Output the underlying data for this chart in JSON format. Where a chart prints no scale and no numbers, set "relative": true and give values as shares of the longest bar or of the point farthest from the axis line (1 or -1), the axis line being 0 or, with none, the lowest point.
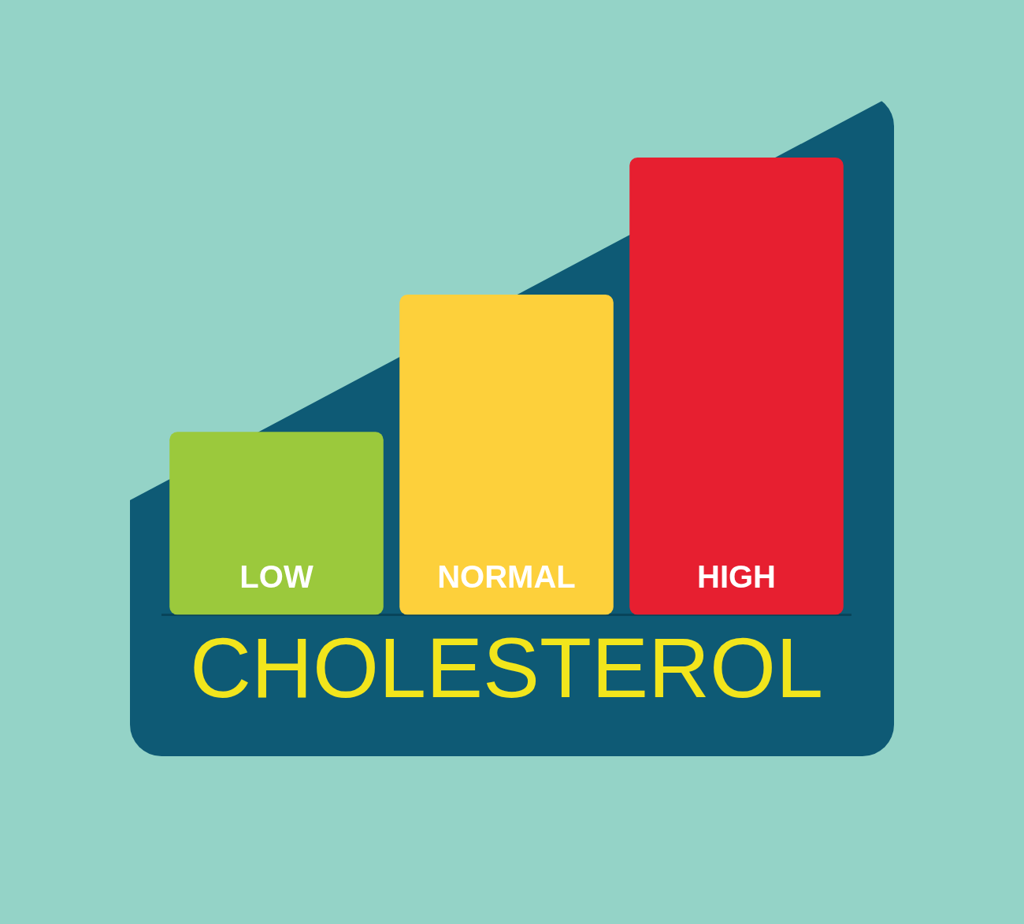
{
  "chart_data": {
    "type": "bar",
    "title": "CHOLESTEROL",
    "categories": [
      "LOW",
      "NORMAL",
      "HIGH"
    ],
    "values": [
      0.4,
      0.7,
      1
    ],
    "colors": [
      "#9bc93c",
      "#fdd03b",
      "#e71f30"
    ],
    "relative": true,
    "legend": false
  }
}
